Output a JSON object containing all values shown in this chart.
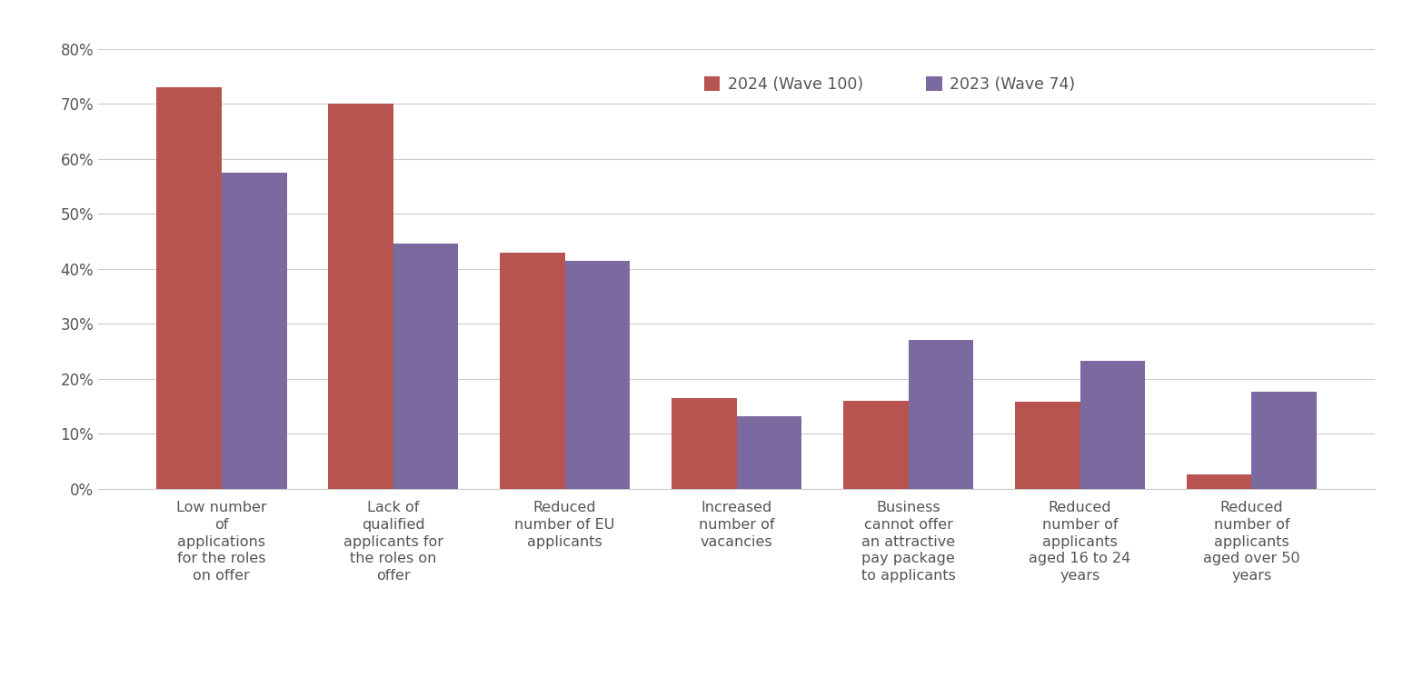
{
  "categories": [
    "Low number\nof\napplications\nfor the roles\non offer",
    "Lack of\nqualified\napplicants for\nthe roles on\noffer",
    "Reduced\nnumber of EU\napplicants",
    "Increased\nnumber of\nvacancies",
    "Business\ncannot offer\nan attractive\npay package\nto applicants",
    "Reduced\nnumber of\napplicants\naged 16 to 24\nyears",
    "Reduced\nnumber of\napplicants\naged over 50\nyears"
  ],
  "values_2024": [
    0.73,
    0.7,
    0.43,
    0.165,
    0.16,
    0.158,
    0.025
  ],
  "values_2023": [
    0.575,
    0.445,
    0.415,
    0.132,
    0.27,
    0.232,
    0.177
  ],
  "color_2024": "#b85450",
  "color_2023": "#7b6aa0",
  "legend_2024": "2024 (Wave 100)",
  "legend_2023": "2023 (Wave 74)",
  "ylim": [
    0,
    0.8
  ],
  "yticks": [
    0.0,
    0.1,
    0.2,
    0.3,
    0.4,
    0.5,
    0.6,
    0.7,
    0.8
  ],
  "ytick_labels": [
    "0%",
    "10%",
    "20%",
    "30%",
    "40%",
    "50%",
    "60%",
    "70%",
    "80%"
  ],
  "bar_width": 0.38,
  "background_color": "#ffffff",
  "grid_color": "#cccccc"
}
